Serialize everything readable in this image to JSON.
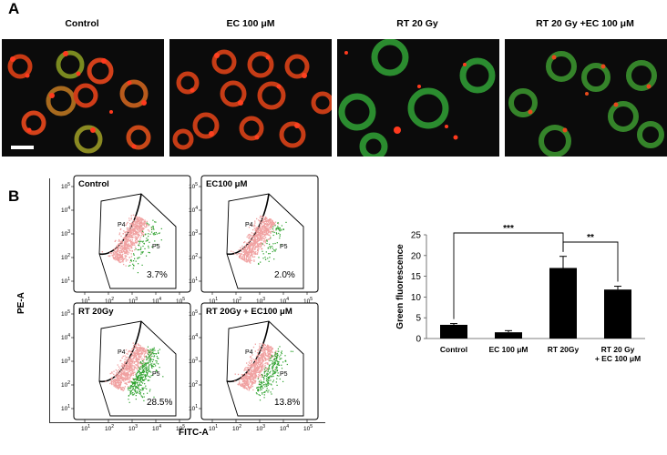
{
  "panel_a": {
    "letter": "A",
    "titles": [
      "Control",
      "EC 100 μM",
      "RT 20 Gy",
      "RT 20 Gy +EC 100 μM"
    ]
  },
  "panel_b": {
    "letter": "B",
    "y_axis_label": "PE-A",
    "x_axis_label": "FITC-A",
    "gate_labels": [
      "P4",
      "P5"
    ],
    "tick_labels": [
      "10",
      "10",
      "10",
      "10",
      "10"
    ],
    "tick_exponents": [
      "1",
      "2",
      "3",
      "4",
      "5"
    ],
    "plots": [
      {
        "title": "Control",
        "percent": "3.7%",
        "green_level": 0.12
      },
      {
        "title": "EC100 μM",
        "percent": "2.0%",
        "green_level": 0.08
      },
      {
        "title": "RT 20Gy",
        "percent": "28.5%",
        "green_level": 0.75
      },
      {
        "title": "RT 20Gy + EC100 μM",
        "percent": "13.8%",
        "green_level": 0.45
      }
    ]
  },
  "chart_data": {
    "type": "bar",
    "categories": [
      "Control",
      "EC 100 μM",
      "RT 20Gy",
      "RT 20 Gy\n+ EC 100 μM"
    ],
    "values": [
      3.3,
      1.5,
      17,
      11.8
    ],
    "errors": [
      0.3,
      0.4,
      2.8,
      0.8
    ],
    "ylabel": "Green fluorescence",
    "xlabel": "",
    "ylim": [
      0,
      25
    ],
    "yticks": [
      0,
      5,
      10,
      15,
      20,
      25
    ],
    "significance": [
      {
        "from": 0,
        "to": 2,
        "label": "***"
      },
      {
        "from": 2,
        "to": 3,
        "label": "**"
      }
    ],
    "bar_color": "#000000"
  },
  "colors": {
    "red_dot": "#e8231a",
    "green_cell": "#3da33a",
    "population_pink": "#f0a0a0",
    "population_green": "#2aa02a"
  }
}
